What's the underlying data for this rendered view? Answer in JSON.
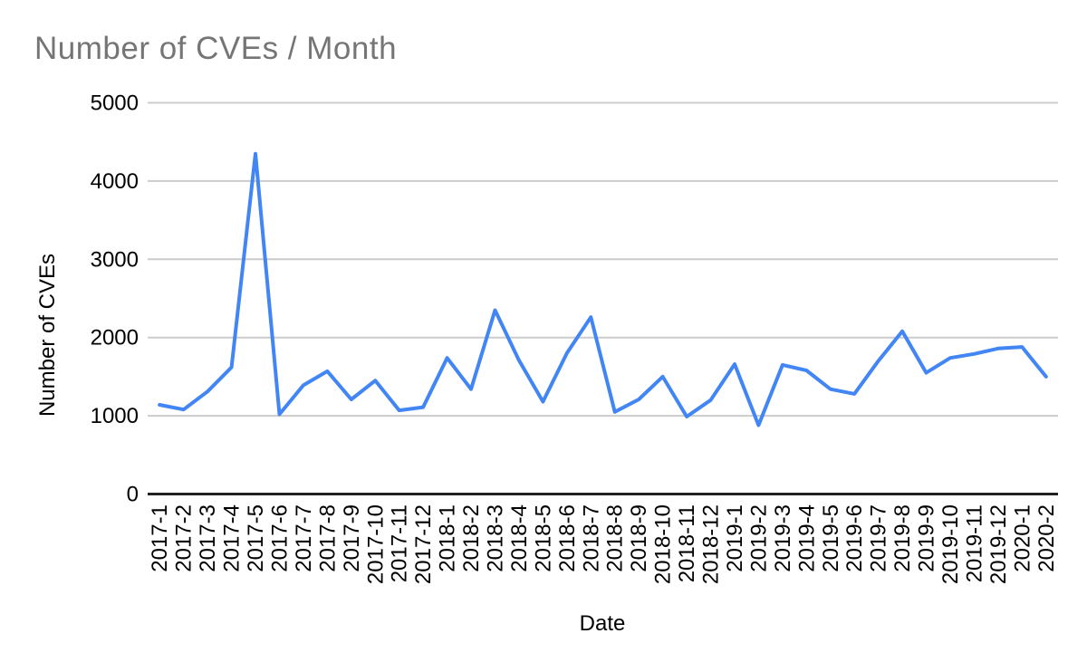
{
  "chart_data": {
    "type": "line",
    "title": "Number of CVEs / Month",
    "xlabel": "Date",
    "ylabel": "Number of CVEs",
    "categories": [
      "2017-1",
      "2017-2",
      "2017-3",
      "2017-4",
      "2017-5",
      "2017-6",
      "2017-7",
      "2017-8",
      "2017-9",
      "2017-10",
      "2017-11",
      "2017-12",
      "2018-1",
      "2018-2",
      "2018-3",
      "2018-4",
      "2018-5",
      "2018-6",
      "2018-7",
      "2018-8",
      "2018-9",
      "2018-10",
      "2018-11",
      "2018-12",
      "2019-1",
      "2019-2",
      "2019-3",
      "2019-4",
      "2019-5",
      "2019-6",
      "2019-7",
      "2019-8",
      "2019-9",
      "2019-10",
      "2019-11",
      "2019-12",
      "2020-1",
      "2020-2"
    ],
    "values": [
      1140,
      1080,
      1310,
      1620,
      4350,
      1020,
      1390,
      1570,
      1210,
      1450,
      1070,
      1110,
      1740,
      1340,
      2350,
      1710,
      1180,
      1800,
      2260,
      1050,
      1210,
      1500,
      990,
      1200,
      1660,
      880,
      1650,
      1580,
      1340,
      1280,
      1700,
      2080,
      1550,
      1740,
      1790,
      1860,
      1880,
      1500
    ],
    "ylim": [
      0,
      5000
    ],
    "yticks": [
      0,
      1000,
      2000,
      3000,
      4000,
      5000
    ],
    "grid": true,
    "legend": "none",
    "colors": {
      "line": "#4285f4",
      "grid": "#cccccc",
      "baseline": "#222222",
      "title": "#757575",
      "tick_labels": "#000000"
    }
  }
}
